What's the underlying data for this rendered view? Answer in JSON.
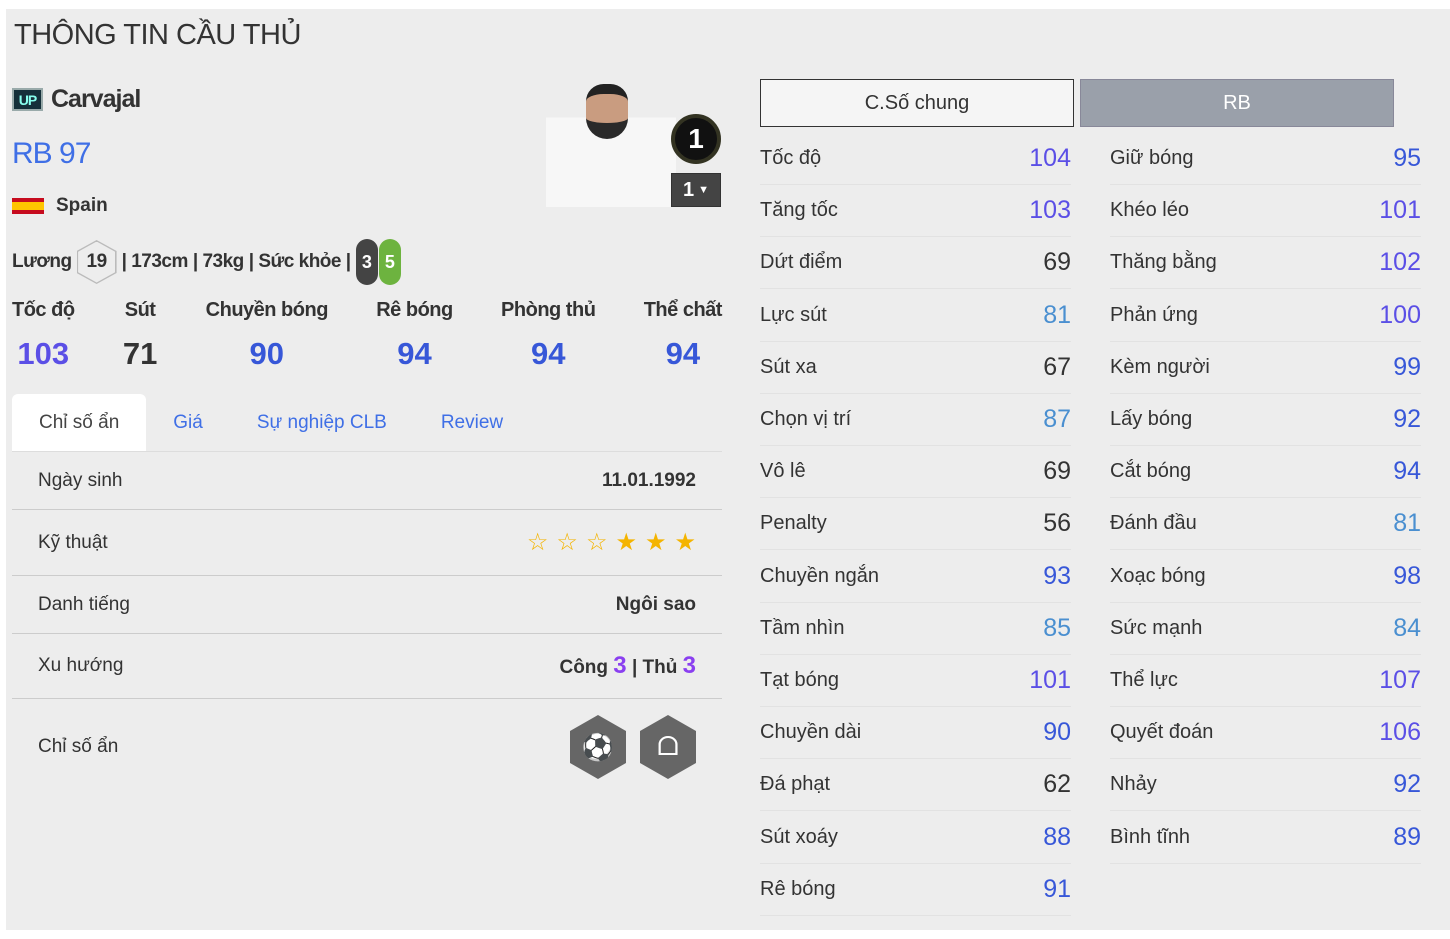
{
  "title": "THÔNG TIN CẦU THỦ",
  "player": {
    "badge": "UP",
    "name": "Carvajal",
    "position_rating": "RB 97",
    "nation": "Spain",
    "salary_label": "Lương",
    "salary": "19",
    "height": "| 173cm",
    "weight": "| 73kg",
    "fitness_label": "| Sức khỏe |",
    "weak_foot": "3",
    "strong_foot": "5",
    "team_color": "1",
    "level": "1"
  },
  "main_stats": [
    {
      "label": "Tốc độ",
      "value": "103",
      "color": "#5b4fe6"
    },
    {
      "label": "Sút",
      "value": "71",
      "color": "#333333"
    },
    {
      "label": "Chuyền bóng",
      "value": "90",
      "color": "#3757d8"
    },
    {
      "label": "Rê bóng",
      "value": "94",
      "color": "#3757d8"
    },
    {
      "label": "Phòng thủ",
      "value": "94",
      "color": "#3757d8"
    },
    {
      "label": "Thể chất",
      "value": "94",
      "color": "#3757d8"
    }
  ],
  "tabs": [
    "Chỉ số ẩn",
    "Giá",
    "Sự nghiệp CLB",
    "Review"
  ],
  "details": {
    "birth_label": "Ngày sinh",
    "birth": "11.01.1992",
    "skill_label": "Kỹ thuật",
    "skill_stars": 3,
    "skill_max": 6,
    "fame_label": "Danh tiếng",
    "fame": "Ngôi sao",
    "trend_label": "Xu hướng",
    "atk_label": "Công",
    "atk": "3",
    "def_label": "| Thủ",
    "def": "3",
    "hidden_label": "Chỉ số ẩn",
    "hidden_icons": [
      "power-header-icon",
      "lungs-icon"
    ]
  },
  "buttons": {
    "general": "C.Số chung",
    "position": "RB"
  },
  "colors": {
    "elite": "#5b4fe6",
    "high": "#3757d8",
    "mid": "#4a8fd0",
    "low": "#333333"
  },
  "left_stats": [
    [
      "Tốc độ",
      "104"
    ],
    [
      "Tăng tốc",
      "103"
    ],
    [
      "Dứt điểm",
      "69"
    ],
    [
      "Lực sút",
      "81"
    ],
    [
      "Sút xa",
      "67"
    ],
    [
      "Chọn vị trí",
      "87"
    ],
    [
      "Vô lê",
      "69"
    ],
    [
      "Penalty",
      "56"
    ],
    [
      "Chuyền ngắn",
      "93"
    ],
    [
      "Tầm nhìn",
      "85"
    ],
    [
      "Tạt bóng",
      "101"
    ],
    [
      "Chuyền dài",
      "90"
    ],
    [
      "Đá phạt",
      "62"
    ],
    [
      "Sút xoáy",
      "88"
    ],
    [
      "Rê bóng",
      "91"
    ]
  ],
  "right_stats": [
    [
      "Giữ bóng",
      "95"
    ],
    [
      "Khéo léo",
      "101"
    ],
    [
      "Thăng bằng",
      "102"
    ],
    [
      "Phản ứng",
      "100"
    ],
    [
      "Kèm người",
      "99"
    ],
    [
      "Lấy bóng",
      "92"
    ],
    [
      "Cắt bóng",
      "94"
    ],
    [
      "Đánh đầu",
      "81"
    ],
    [
      "Xoạc bóng",
      "98"
    ],
    [
      "Sức mạnh",
      "84"
    ],
    [
      "Thể lực",
      "107"
    ],
    [
      "Quyết đoán",
      "106"
    ],
    [
      "Nhảy",
      "92"
    ],
    [
      "Bình tĩnh",
      "89"
    ]
  ]
}
